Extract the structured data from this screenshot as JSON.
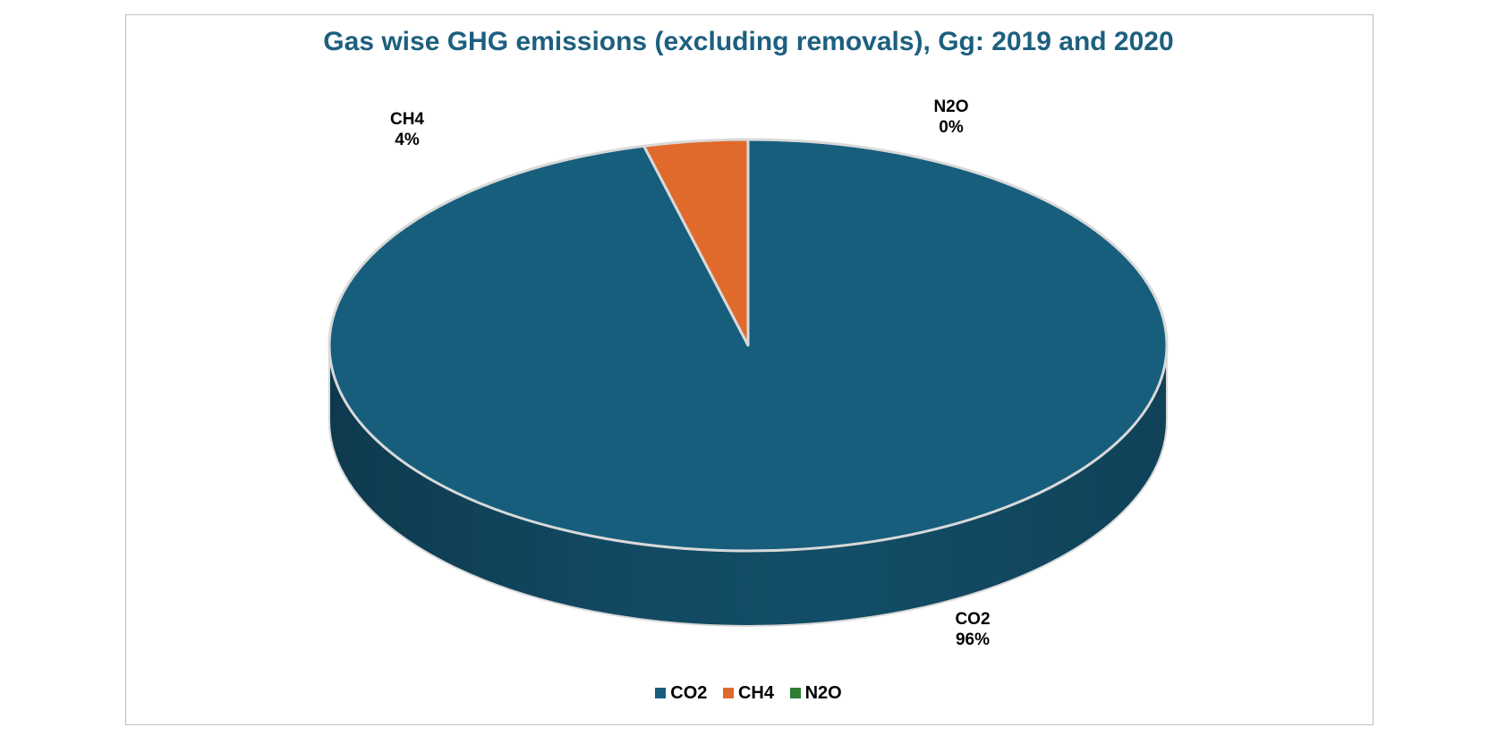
{
  "chart_data": {
    "type": "pie",
    "title": "Gas wise GHG emissions (excluding removals), Gg: 2019 and 2020",
    "slices": [
      {
        "name": "CO2",
        "percent": 96,
        "label_value": "96%",
        "color": "#175e7d"
      },
      {
        "name": "CH4",
        "percent": 4,
        "label_value": "4%",
        "color": "#e06a2c"
      },
      {
        "name": "N2O",
        "percent": 0,
        "label_value": "0%",
        "color": "#2e7d32"
      }
    ],
    "legend": {
      "position": "bottom",
      "entries": [
        "CO2",
        "CH4",
        "N2O"
      ]
    },
    "three_d": true
  }
}
